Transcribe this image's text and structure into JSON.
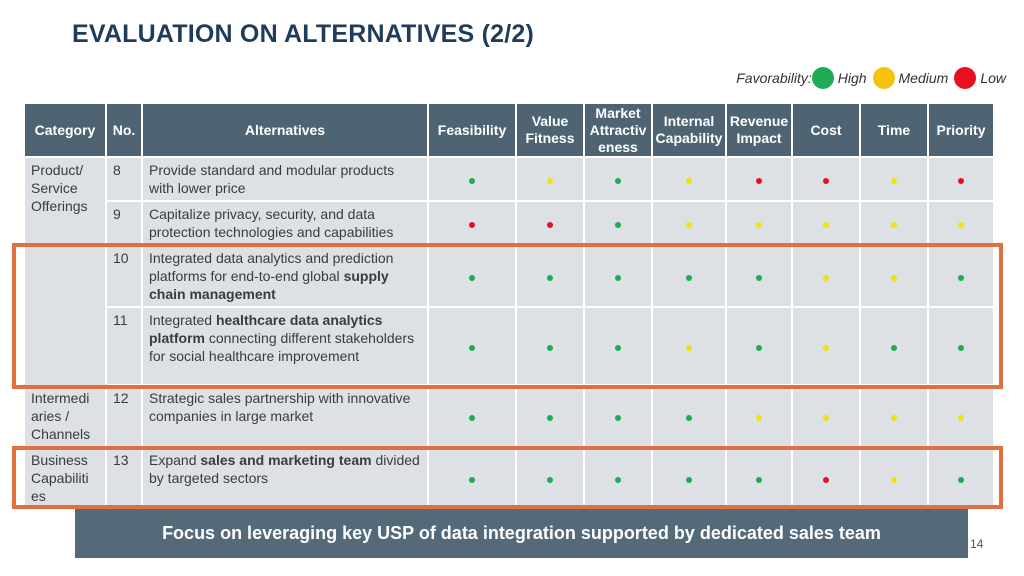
{
  "title": "EVALUATION ON ALTERNATIVES (2/2)",
  "legend": {
    "label": "Favorability:",
    "items": [
      {
        "label": "High",
        "color": "#1faa54"
      },
      {
        "label": "Medium",
        "color": "#f5c20f"
      },
      {
        "label": "Low",
        "color": "#e6101f"
      }
    ]
  },
  "columns": {
    "category": "Category",
    "no": "No.",
    "alternatives": "Alternatives",
    "feasibility": "Feasibility",
    "value_fitness": "Value Fitness",
    "market_attractiveness": "Market Attractiv eness",
    "internal_capability": "Internal Capability",
    "revenue_impact": "Revenue Impact",
    "cost": "Cost",
    "time": "Time",
    "priority": "Priority"
  },
  "categories": {
    "product": "Product/ Service Offerings",
    "intermediaries": "Intermedi aries / Channels",
    "business": "Business Capabiliti es"
  },
  "rows": [
    {
      "no": "8",
      "text": [
        {
          "t": "Provide standard and modular products with lower price",
          "b": false
        }
      ],
      "ratings": [
        "high",
        "medium",
        "high",
        "medium",
        "low",
        "low",
        "medium",
        "low"
      ]
    },
    {
      "no": "9",
      "text": [
        {
          "t": "Capitalize privacy, security, and data protection technologies and capabilities",
          "b": false
        }
      ],
      "ratings": [
        "low",
        "low",
        "high",
        "medium",
        "medium",
        "medium",
        "medium",
        "medium"
      ]
    },
    {
      "no": "10",
      "text": [
        {
          "t": "Integrated data analytics and prediction platforms for end-to-end global ",
          "b": false
        },
        {
          "t": "supply chain management",
          "b": true
        }
      ],
      "ratings": [
        "high",
        "high",
        "high",
        "high",
        "high",
        "medium",
        "medium",
        "high"
      ]
    },
    {
      "no": "11",
      "text": [
        {
          "t": "Integrated ",
          "b": false
        },
        {
          "t": "healthcare data analytics platform",
          "b": true
        },
        {
          "t": " connecting different stakeholders for social healthcare improvement",
          "b": false
        }
      ],
      "ratings": [
        "high",
        "high",
        "high",
        "medium",
        "high",
        "medium",
        "high",
        "high"
      ]
    },
    {
      "no": "12",
      "text": [
        {
          "t": "Strategic sales partnership with innovative companies in large market",
          "b": false
        }
      ],
      "ratings": [
        "high",
        "high",
        "high",
        "high",
        "medium",
        "medium",
        "medium",
        "medium"
      ]
    },
    {
      "no": "13",
      "text": [
        {
          "t": "Expand ",
          "b": false
        },
        {
          "t": "sales and marketing team",
          "b": true
        },
        {
          "t": " divided by targeted sectors",
          "b": false
        }
      ],
      "ratings": [
        "high",
        "high",
        "high",
        "high",
        "high",
        "low",
        "medium",
        "high"
      ]
    }
  ],
  "banner": "Focus on leveraging key USP of data integration supported by dedicated sales team",
  "page_number": "14"
}
